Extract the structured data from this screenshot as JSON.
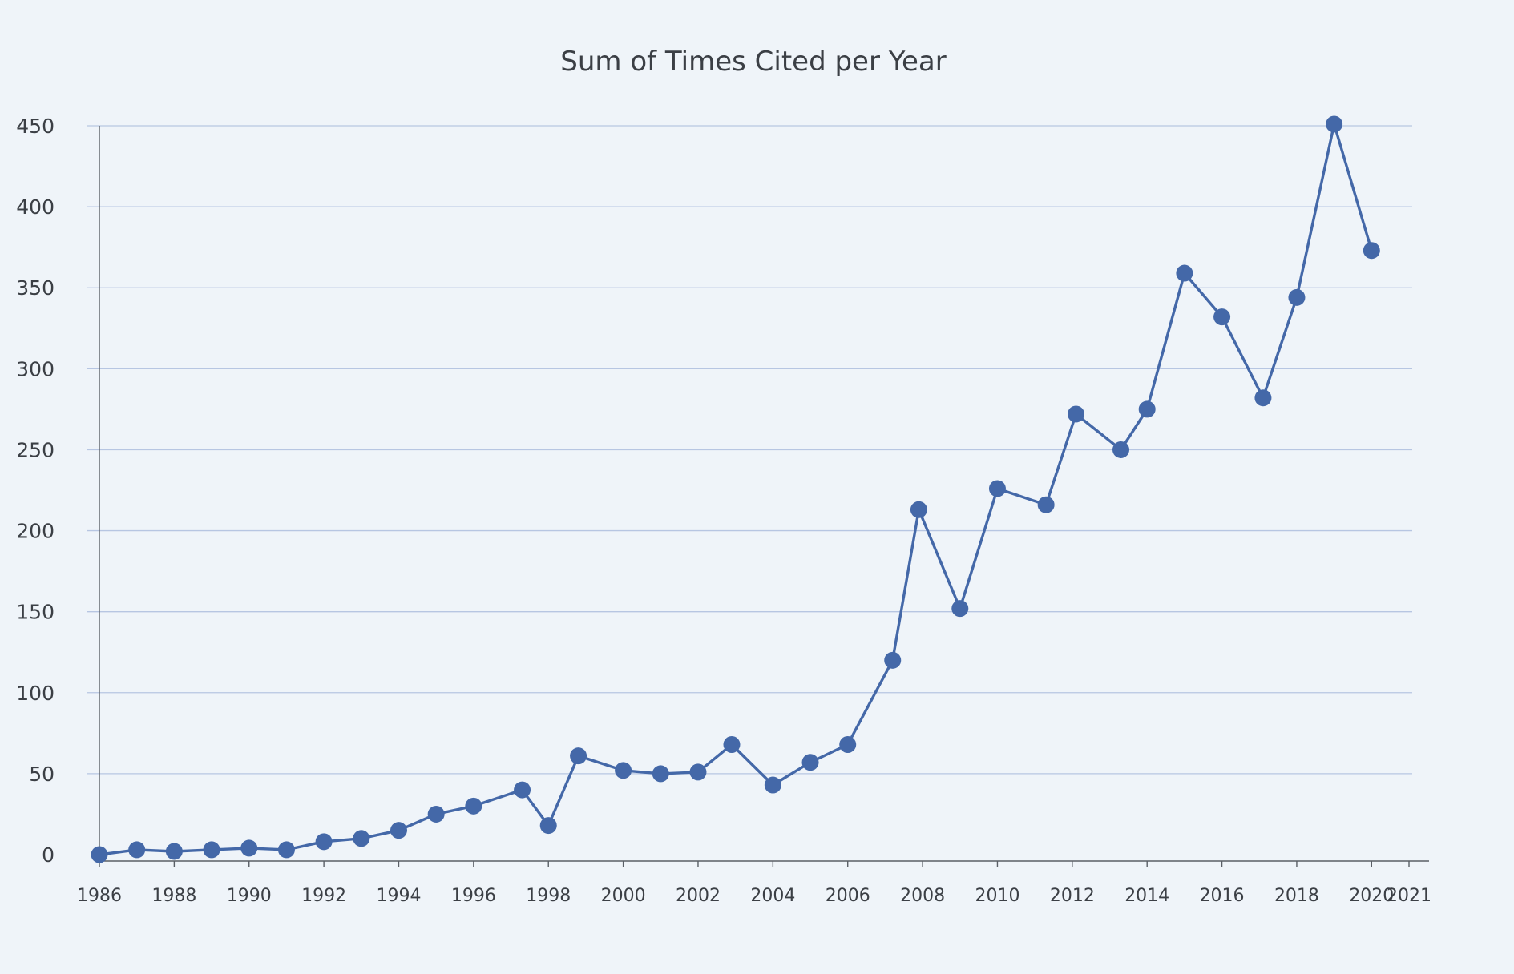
{
  "chart_data": {
    "type": "line",
    "title": "Sum of Times Cited per Year",
    "xlabel": "",
    "ylabel": "",
    "ylim": [
      0,
      450
    ],
    "xlim": [
      1986,
      2021
    ],
    "y_ticks": [
      "0",
      "50",
      "100",
      "150",
      "200",
      "250",
      "300",
      "350",
      "400",
      "450"
    ],
    "x_ticks": [
      "1986",
      "1988",
      "1990",
      "1992",
      "1994",
      "1996",
      "1998",
      "2000",
      "2002",
      "2004",
      "2006",
      "2008",
      "2010",
      "2012",
      "2014",
      "2016",
      "2018",
      "2020",
      "2021"
    ],
    "grid": "horizontal",
    "colors": {
      "line": "#4468a8",
      "grid": "#b7c6e2",
      "axis": "#5a5f66",
      "background": "#eff4f9",
      "text": "#3b3f45"
    },
    "series": [
      {
        "x": [
          1986,
          1987,
          1988,
          1989,
          1990,
          1991,
          1992,
          1993,
          1994,
          1995,
          1996,
          1997.3,
          1998,
          1998.8,
          2000,
          2001,
          2002,
          2002.9,
          2004,
          2005,
          2006,
          2007.2,
          2007.9,
          2009,
          2010,
          2011.3,
          2012.1,
          2013.3,
          2014,
          2015,
          2016,
          2017.1,
          2018,
          2019,
          2020
        ],
        "y": [
          0,
          3,
          2,
          3,
          4,
          3,
          8,
          10,
          15,
          25,
          30,
          40,
          18,
          61,
          52,
          50,
          51,
          68,
          43,
          57,
          68,
          120,
          213,
          152,
          226,
          216,
          272,
          250,
          275,
          359,
          332,
          282,
          344,
          451,
          373
        ]
      }
    ]
  }
}
